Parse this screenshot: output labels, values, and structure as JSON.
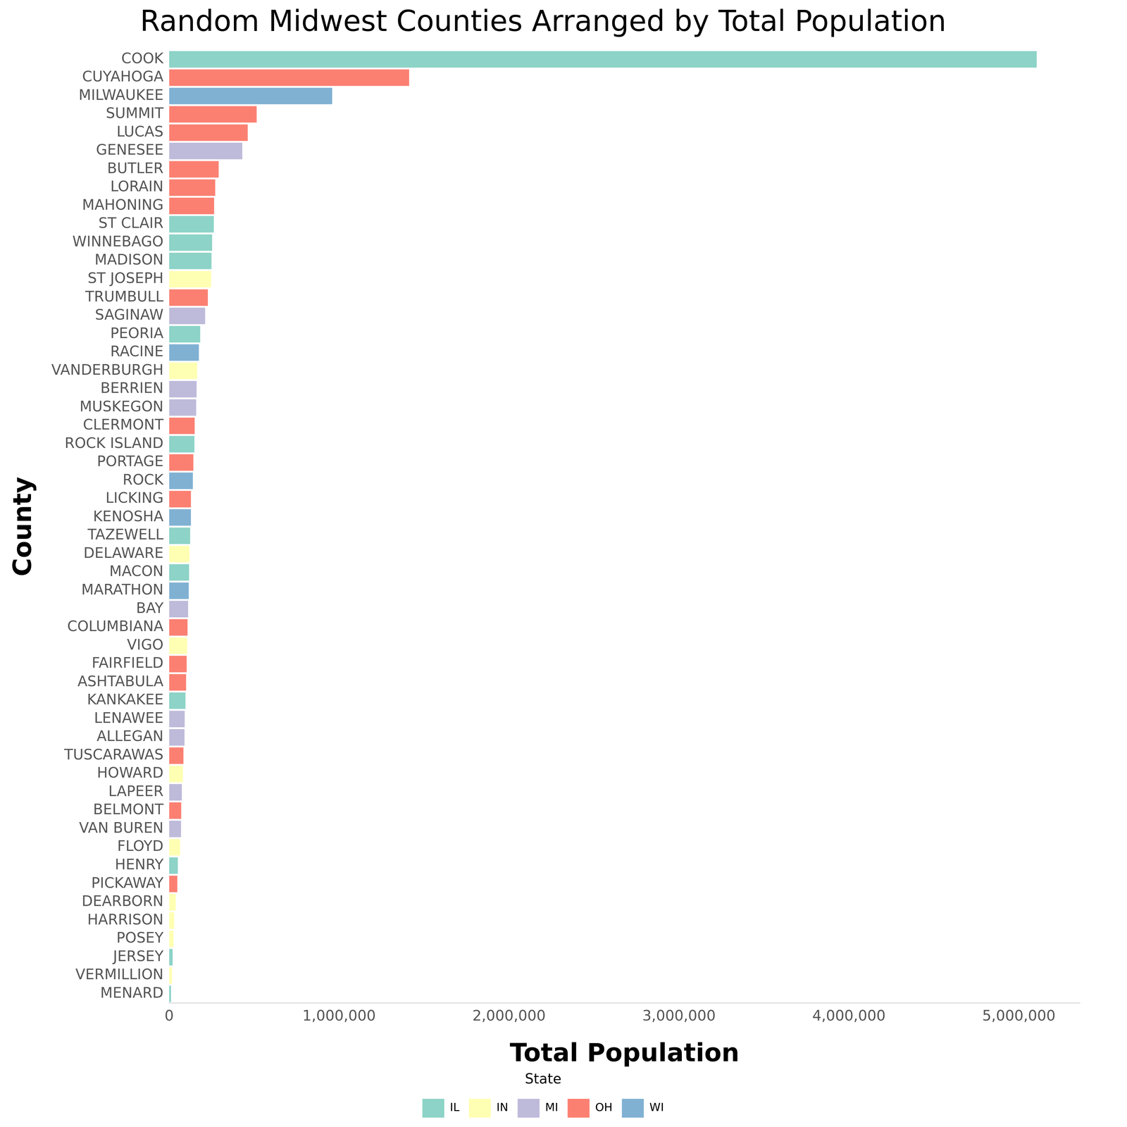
{
  "chart_data": {
    "type": "bar",
    "orientation": "horizontal",
    "title": "Random Midwest Counties Arranged by Total Population",
    "x_label": "Total Population",
    "y_label": "County",
    "legend_title": "State",
    "legend": "bottom",
    "grid": false,
    "categories": [
      "COOK",
      "CUYAHOGA",
      "MILWAUKEE",
      "SUMMIT",
      "LUCAS",
      "GENESEE",
      "BUTLER",
      "LORAIN",
      "MAHONING",
      "ST CLAIR",
      "WINNEBAGO",
      "MADISON",
      "ST JOSEPH",
      "TRUMBULL",
      "SAGINAW",
      "PEORIA",
      "RACINE",
      "VANDERBURGH",
      "BERRIEN",
      "MUSKEGON",
      "CLERMONT",
      "ROCK ISLAND",
      "PORTAGE",
      "ROCK",
      "LICKING",
      "KENOSHA",
      "TAZEWELL",
      "DELAWARE",
      "MACON",
      "MARATHON",
      "BAY",
      "COLUMBIANA",
      "VIGO",
      "FAIRFIELD",
      "ASHTABULA",
      "KANKAKEE",
      "LENAWEE",
      "ALLEGAN",
      "TUSCARAWAS",
      "HOWARD",
      "LAPEER",
      "BELMONT",
      "VAN BUREN",
      "FLOYD",
      "HENRY",
      "PICKAWAY",
      "DEARBORN",
      "HARRISON",
      "POSEY",
      "JERSEY",
      "VERMILLION",
      "MENARD"
    ],
    "series": [
      {
        "name": "IL",
        "color": "#8DD3C7",
        "values": [
          5105067,
          null,
          null,
          null,
          null,
          null,
          null,
          null,
          null,
          262852,
          252913,
          249238,
          null,
          null,
          null,
          182827,
          null,
          null,
          null,
          null,
          null,
          148723,
          null,
          null,
          null,
          null,
          123692,
          null,
          117206,
          null,
          null,
          null,
          null,
          null,
          null,
          96255,
          null,
          null,
          null,
          null,
          null,
          null,
          null,
          null,
          51159,
          null,
          null,
          null,
          null,
          20539,
          null,
          11164
        ]
      },
      {
        "name": "IN",
        "color": "#FFFFB3",
        "values": [
          null,
          null,
          null,
          null,
          null,
          null,
          null,
          null,
          null,
          null,
          null,
          null,
          247052,
          null,
          null,
          null,
          null,
          165058,
          null,
          null,
          null,
          null,
          null,
          null,
          null,
          null,
          null,
          119659,
          null,
          null,
          null,
          null,
          106107,
          null,
          null,
          null,
          null,
          null,
          null,
          80827,
          null,
          null,
          null,
          64404,
          null,
          null,
          38835,
          29890,
          25968,
          null,
          16773,
          null
        ]
      },
      {
        "name": "MI",
        "color": "#BEBADA",
        "values": [
          null,
          null,
          null,
          null,
          null,
          430459,
          null,
          null,
          null,
          null,
          null,
          null,
          null,
          null,
          211946,
          null,
          null,
          null,
          161378,
          158983,
          null,
          null,
          null,
          null,
          null,
          null,
          null,
          null,
          null,
          null,
          111723,
          null,
          null,
          null,
          null,
          null,
          91476,
          90509,
          null,
          null,
          74768,
          null,
          70060,
          null,
          null,
          null,
          null,
          null,
          null,
          null,
          null,
          null
        ]
      },
      {
        "name": "OH",
        "color": "#FB8072",
        "values": [
          null,
          1412140,
          null,
          514990,
          462361,
          null,
          291479,
          271126,
          264806,
          null,
          null,
          null,
          null,
          227813,
          null,
          null,
          null,
          null,
          null,
          null,
          150187,
          null,
          142585,
          null,
          128300,
          null,
          null,
          null,
          null,
          null,
          null,
          108276,
          null,
          103461,
          99821,
          null,
          null,
          null,
          84090,
          null,
          null,
          71074,
          null,
          null,
          null,
          48255,
          null,
          null,
          null,
          null,
          null,
          null
        ]
      },
      {
        "name": "WI",
        "color": "#80B1D3",
        "values": [
          null,
          null,
          959275,
          null,
          null,
          null,
          null,
          null,
          null,
          null,
          null,
          null,
          null,
          null,
          null,
          null,
          175034,
          null,
          null,
          null,
          null,
          null,
          null,
          139510,
          null,
          128181,
          null,
          null,
          null,
          115400,
          null,
          null,
          null,
          null,
          null,
          null,
          null,
          null,
          null,
          null,
          null,
          null,
          null,
          null,
          null,
          null,
          null,
          null,
          null,
          null,
          null,
          null
        ]
      }
    ],
    "xlim": [
      0,
      5360000
    ],
    "xticks": [
      {
        "value": 0,
        "label": "0"
      },
      {
        "value": 1000000,
        "label": "1,000,000"
      },
      {
        "value": 2000000,
        "label": "2,000,000"
      },
      {
        "value": 3000000,
        "label": "3,000,000"
      },
      {
        "value": 4000000,
        "label": "4,000,000"
      },
      {
        "value": 5000000,
        "label": "5,000,000"
      }
    ]
  }
}
